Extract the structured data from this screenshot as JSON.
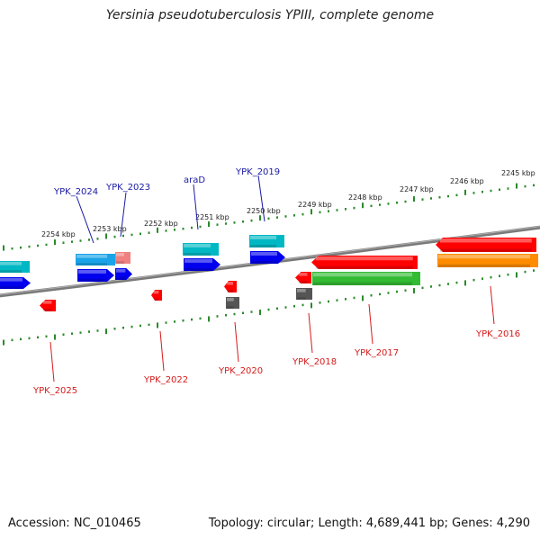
{
  "title": "Yersinia pseudotuberculosis YPIII, complete genome",
  "footer": {
    "accession": "Accession: NC_010465",
    "summary": "Topology: circular; Length: 4,689,441 bp; Genes: 4,290"
  },
  "ruler_labels": [
    "2254 kbp",
    "2253 kbp",
    "2252 kbp",
    "2251 kbp",
    "2250 kbp",
    "2249 kbp",
    "2248 kbp",
    "2247 kbp",
    "2246 kbp",
    "2245 kbp"
  ],
  "top_labels": [
    "YPK_2024",
    "YPK_2023",
    "araD",
    "YPK_2019"
  ],
  "bottom_labels": [
    "YPK_2025",
    "YPK_2022",
    "YPK_2020",
    "YPK_2018",
    "YPK_2017",
    "YPK_2016"
  ],
  "colors": {
    "top_label": "#1a1aa6",
    "bottom_label": "#d61a1a",
    "ruler": "#2a8a2a",
    "backbone": "#808080",
    "red": "#ff0000",
    "blue": "#0000ee",
    "cyan": "#00b8c4",
    "sky": "#1aa3e8",
    "pink": "#f08080",
    "green": "#33bb33",
    "orange": "#ff8c00",
    "gray": "#555555"
  }
}
